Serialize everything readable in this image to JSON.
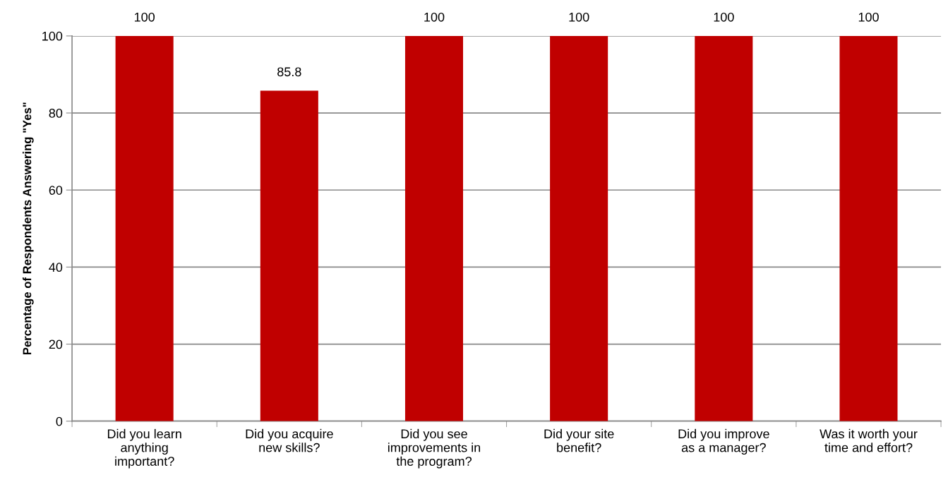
{
  "chart_data": {
    "type": "bar",
    "ylabel": "Percentage of Respondents Answering \"Yes\"",
    "categories": [
      "Did you learn\nanything\nimportant?",
      "Did you acquire\nnew skills?",
      "Did you see\nimprovements in\nthe program?",
      "Did your site\nbenefit?",
      "Did you improve\nas a manager?",
      "Was it worth your\ntime and effort?"
    ],
    "values": [
      100,
      85.8,
      100,
      100,
      100,
      100
    ],
    "color": "#c00000",
    "ylim": [
      0,
      100
    ],
    "yticks": [
      0,
      20,
      40,
      60,
      80,
      100
    ],
    "grid": "y",
    "data_labels": true,
    "legend": false
  }
}
